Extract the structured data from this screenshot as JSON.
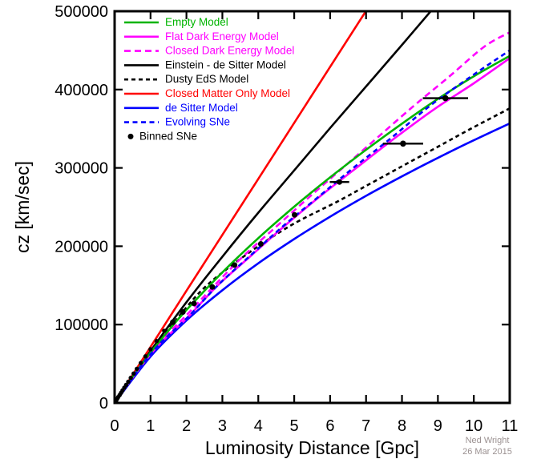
{
  "credit": {
    "line1": "Ned Wright",
    "line2": "26 Mar 2015",
    "color": "#9b9191"
  },
  "chart_data": {
    "type": "line",
    "title": "",
    "xlabel": "Luminosity Distance [Gpc]",
    "ylabel": "cz [km/sec]",
    "xlim": [
      0,
      11
    ],
    "ylim": [
      0,
      500000
    ],
    "xticks": [
      0,
      1,
      2,
      3,
      4,
      5,
      6,
      7,
      8,
      9,
      10,
      11
    ],
    "yticks": [
      0,
      100000,
      200000,
      300000,
      400000,
      500000
    ],
    "ytick_labels": [
      "0",
      "100000",
      "200000",
      "300000",
      "400000",
      "500000"
    ],
    "grid": false,
    "legend_position": "top-left-inside",
    "axis_color": "#000000",
    "series": [
      {
        "name": "einstein-de-sitter-model",
        "label": "Einstein - de Sitter Model",
        "color": "#000000",
        "style": "solid",
        "dash": null,
        "points": [
          [
            0,
            0
          ],
          [
            1,
            66300
          ],
          [
            2,
            128500
          ],
          [
            3,
            186700
          ],
          [
            4,
            242800
          ],
          [
            5,
            296800
          ],
          [
            6,
            350900
          ],
          [
            7,
            403900
          ],
          [
            8,
            457000
          ],
          [
            8.95,
            508000
          ]
        ]
      },
      {
        "name": "closed-matter-only-model",
        "label": "Closed Matter Only Model",
        "color": "#ff0000",
        "style": "solid",
        "dash": null,
        "points": [
          [
            0,
            0
          ],
          [
            2,
            143000
          ],
          [
            4,
            286000
          ],
          [
            6,
            429000
          ],
          [
            7.15,
            511000
          ]
        ]
      },
      {
        "name": "dusty-eds-model",
        "label": "Dusty EdS Model",
        "color": "#000000",
        "style": "dashed",
        "dash": "5 4",
        "points": [
          [
            0,
            0
          ],
          [
            1,
            65000
          ],
          [
            2,
            122000
          ],
          [
            2.5,
            147000
          ],
          [
            3.1,
            170000
          ],
          [
            4,
            200000
          ],
          [
            5,
            229000
          ],
          [
            6.2,
            257000
          ],
          [
            7,
            277000
          ],
          [
            8,
            302000
          ],
          [
            9,
            327000
          ],
          [
            10,
            352000
          ],
          [
            11,
            376000
          ]
        ]
      },
      {
        "name": "de-sitter-model",
        "label": "de Sitter Model",
        "color": "#0000ff",
        "style": "solid",
        "dash": null,
        "points": [
          [
            0,
            0
          ],
          [
            1,
            59200
          ],
          [
            2,
            105200
          ],
          [
            3,
            143900
          ],
          [
            4,
            178200
          ],
          [
            5,
            209200
          ],
          [
            6,
            237700
          ],
          [
            7,
            264300
          ],
          [
            8,
            289200
          ],
          [
            9,
            312800
          ],
          [
            10,
            335300
          ],
          [
            11,
            356800
          ]
        ]
      },
      {
        "name": "flat-dark-energy-model",
        "label": "Flat Dark Energy Model",
        "color": "#ff00ff",
        "style": "solid",
        "dash": null,
        "points": [
          [
            0,
            0
          ],
          [
            0.62,
            40000
          ],
          [
            1.25,
            75000
          ],
          [
            2.05,
            110000
          ],
          [
            2.87,
            150000
          ],
          [
            3.8,
            188000
          ],
          [
            4.71,
            225000
          ],
          [
            5.7,
            263000
          ],
          [
            6.73,
            300000
          ],
          [
            7.8,
            338000
          ],
          [
            8.9,
            375000
          ],
          [
            10,
            408000
          ],
          [
            11,
            440000
          ]
        ]
      },
      {
        "name": "closed-dark-energy-model",
        "label": "Closed Dark Energy Model",
        "color": "#ff00ff",
        "style": "dashed",
        "dash": "8 5",
        "points": [
          [
            0,
            0
          ],
          [
            0.6,
            40000
          ],
          [
            1.2,
            75000
          ],
          [
            2.0,
            112000
          ],
          [
            2.78,
            150000
          ],
          [
            3.6,
            188000
          ],
          [
            4.5,
            225000
          ],
          [
            5.4,
            262000
          ],
          [
            6.35,
            300000
          ],
          [
            7.3,
            338000
          ],
          [
            8.3,
            378000
          ],
          [
            9.3,
            416000
          ],
          [
            10.3,
            455000
          ],
          [
            11,
            473000
          ]
        ]
      },
      {
        "name": "empty-model",
        "label": "Empty Model",
        "color": "#00b400",
        "style": "solid",
        "dash": null,
        "points": [
          [
            0,
            0
          ],
          [
            0.5,
            33500
          ],
          [
            1,
            64100
          ],
          [
            1.5,
            92300
          ],
          [
            2,
            118600
          ],
          [
            3,
            166700
          ],
          [
            4,
            210300
          ],
          [
            5,
            250500
          ],
          [
            6,
            287900
          ],
          [
            7,
            323100
          ],
          [
            8,
            356400
          ],
          [
            9,
            388100
          ],
          [
            10,
            417000
          ],
          [
            11,
            443000
          ]
        ]
      },
      {
        "name": "evolving-sne",
        "label": "Evolving SNe",
        "color": "#0000ff",
        "style": "dashed",
        "dash": "6 4.5",
        "points": [
          [
            0,
            0
          ],
          [
            0.62,
            40000
          ],
          [
            1.25,
            75000
          ],
          [
            2.05,
            110000
          ],
          [
            2.87,
            150000
          ],
          [
            3.8,
            189000
          ],
          [
            4.7,
            226000
          ],
          [
            5.7,
            264000
          ],
          [
            6.7,
            302000
          ],
          [
            7.75,
            340000
          ],
          [
            8.8,
            380000
          ],
          [
            9.9,
            416000
          ],
          [
            11,
            450000
          ]
        ]
      }
    ],
    "scatter": {
      "name": "binned-sne",
      "label": "Binned SNe",
      "color": "#000000",
      "points_xerr": [
        [
          0.04,
          2500,
          0
        ],
        [
          0.07,
          5000,
          0
        ],
        [
          0.1,
          7500,
          0
        ],
        [
          0.14,
          10000,
          0
        ],
        [
          0.18,
          13000,
          0
        ],
        [
          0.22,
          16000,
          0
        ],
        [
          0.27,
          19500,
          0
        ],
        [
          0.32,
          23000,
          0
        ],
        [
          0.38,
          27000,
          0
        ],
        [
          0.45,
          32000,
          0
        ],
        [
          0.53,
          37500,
          0
        ],
        [
          0.62,
          43500,
          0
        ],
        [
          0.73,
          51000,
          0
        ],
        [
          0.86,
          59500,
          0
        ],
        [
          1.0,
          68500,
          0
        ],
        [
          1.17,
          79000,
          0
        ],
        [
          1.38,
          92000,
          0
        ],
        [
          1.62,
          103000,
          0
        ],
        [
          1.9,
          116000,
          0
        ],
        [
          2.21,
          127000,
          0
        ],
        [
          2.72,
          148000,
          0
        ],
        [
          3.34,
          176000,
          0
        ],
        [
          4.07,
          203000,
          0
        ],
        [
          5.01,
          240000,
          0
        ],
        [
          6.26,
          282000,
          0.27
        ],
        [
          8.03,
          331000,
          0.56
        ],
        [
          9.21,
          389000,
          0.63
        ]
      ]
    },
    "legend": [
      {
        "label": "Empty Model",
        "color": "#00b400",
        "marker": "line",
        "dash": null
      },
      {
        "label": "Flat Dark Energy Model",
        "color": "#ff00ff",
        "marker": "line",
        "dash": null
      },
      {
        "label": "Closed Dark Energy Model",
        "color": "#ff00ff",
        "marker": "line-dash",
        "dash": "8 5"
      },
      {
        "label": "Einstein - de Sitter Model",
        "color": "#000000",
        "marker": "line",
        "dash": null
      },
      {
        "label": "Dusty EdS Model",
        "color": "#000000",
        "marker": "line-dash",
        "dash": "5 4"
      },
      {
        "label": "Closed Matter Only Model",
        "color": "#ff0000",
        "marker": "line",
        "dash": null
      },
      {
        "label": "de Sitter Model",
        "color": "#0000ff",
        "marker": "line",
        "dash": null
      },
      {
        "label": "Evolving SNe",
        "color": "#0000ff",
        "marker": "line-dash",
        "dash": "6 4.5"
      },
      {
        "label": "Binned SNe",
        "color": "#000000",
        "marker": "dot",
        "dash": null
      }
    ]
  }
}
